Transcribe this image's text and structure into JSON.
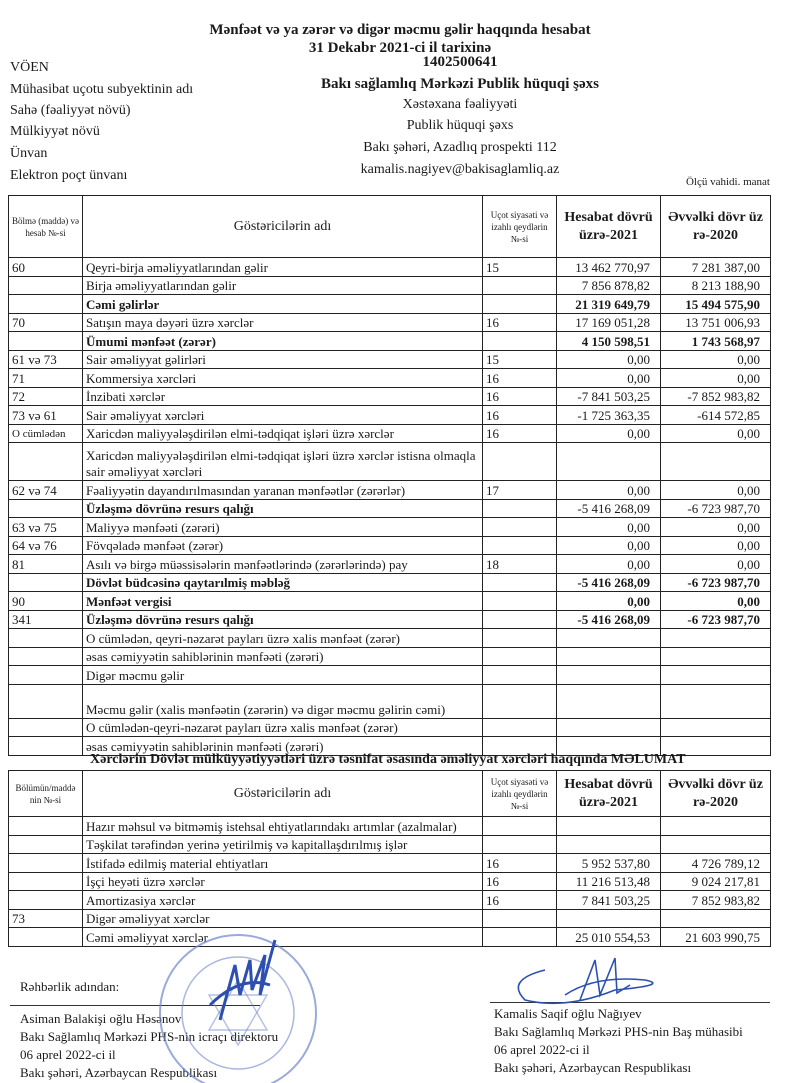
{
  "header": {
    "title": "Mənfəət və ya zərər və digər məcmu gəlir haqqında hesabat",
    "date": "31 Dekabr 2021-ci il tarixinə",
    "fields": [
      {
        "label": "VÖEN",
        "value": "1402500641"
      },
      {
        "label": "Mühasibat uçotu subyektinin adı",
        "value": "Bakı sağlamlıq Mərkəzi Publik hüquqi şəxs"
      },
      {
        "label": "Sahə (fəaliyyət növü)",
        "value": "Xəstəxana fəaliyyəti"
      },
      {
        "label": "Mülkiyyət növü",
        "value": "Publik hüquqi şəxs"
      },
      {
        "label": "Ünvan",
        "value": "Bakı şəhəri, Azadlıq prospekti 112"
      },
      {
        "label": "Elektron poçt ünvanı",
        "value": "kamalis.nagiyev@bakisaglamliq.az"
      }
    ],
    "unit": "Ölçü vahidi. manat"
  },
  "table1": {
    "columns": [
      "Bölmə (maddə) və hesab №-si",
      "Göstəricilərin adı",
      "Uçot siyasəti və izahlı qeydlərin №-si",
      "Hesabat dövrü üzrə-2021",
      "Əvvəlki dövr üz rə-2020"
    ],
    "rows": [
      {
        "code": "60",
        "name": "Qeyri-birja əməliyyatlarından gəlir",
        "note": "15",
        "y2021": "13 462 770,97",
        "y2020": "7 281 387,00"
      },
      {
        "code": "",
        "name": "Birja əməliyyatlarından gəlir",
        "note": "",
        "y2021": "7 856 878,82",
        "y2020": "8 213 188,90"
      },
      {
        "code": "",
        "name": "Cəmi gəlirlər",
        "note": "",
        "y2021": "21 319 649,79",
        "y2020": "15 494 575,90",
        "bold": true
      },
      {
        "code": "70",
        "name": "Satışın maya dəyəri üzrə xərclər",
        "note": "16",
        "y2021": "17 169 051,28",
        "y2020": "13 751 006,93"
      },
      {
        "code": "",
        "name": "Ümumi mənfəət (zərər)",
        "note": "",
        "y2021": "4 150 598,51",
        "y2020": "1 743 568,97",
        "bold": true
      },
      {
        "code": "61 və 73",
        "name": "Sair əməliyyat gəlirləri",
        "note": "15",
        "y2021": "0,00",
        "y2020": "0,00"
      },
      {
        "code": "71",
        "name": "Kommersiya xərcləri",
        "note": "16",
        "y2021": "0,00",
        "y2020": "0,00"
      },
      {
        "code": "72",
        "name": "İnzibati xərclər",
        "note": "16",
        "y2021": "-7 841 503,25",
        "y2020": "-7 852 983,82"
      },
      {
        "code": "73 və 61",
        "name": "Sair əməliyyat xərcləri",
        "note": "16",
        "y2021": "-1 725 363,35",
        "y2020": "-614 572,85"
      },
      {
        "code": "O cümlədən",
        "name": "Xaricdən maliyyələşdirilən elmi-tədqiqat işləri üzrə xərclər",
        "note": "16",
        "y2021": "0,00",
        "y2020": "0,00"
      },
      {
        "code": "",
        "name": "Xaricdən maliyyələşdirilən elmi-tədqiqat işləri üzrə xərclər istisna olmaqla sair əməliyyat xərcləri",
        "note": "",
        "y2021": "",
        "y2020": "",
        "tall": true
      },
      {
        "code": "62 və 74",
        "name": "Fəaliyyətin dayandırılmasından yaranan mənfəətlər (zərərlər)",
        "note": "17",
        "y2021": "0,00",
        "y2020": "0,00"
      },
      {
        "code": "",
        "name": "Üzləşmə dövrünə resurs qalığı",
        "note": "",
        "y2021": "-5 416 268,09",
        "y2020": "-6 723 987,70",
        "boldName": true
      },
      {
        "code": "63 və 75",
        "name": "Maliyyə mənfəəti (zərəri)",
        "note": "",
        "y2021": "0,00",
        "y2020": "0,00"
      },
      {
        "code": "64 və 76",
        "name": "Fövqəladə mənfəət (zərər)",
        "note": "",
        "y2021": "0,00",
        "y2020": "0,00"
      },
      {
        "code": "81",
        "name": "Asılı və birgə müəssisələrin mənfəətlərində (zərərlərində) pay",
        "note": "18",
        "y2021": "0,00",
        "y2020": "0,00"
      },
      {
        "code": "",
        "name": "Dövlət büdcəsinə qaytarılmiş məbləğ",
        "note": "",
        "y2021": "-5 416 268,09",
        "y2020": "-6 723 987,70",
        "bold": true
      },
      {
        "code": "90",
        "name": "Mənfəət vergisi",
        "note": "",
        "y2021": "0,00",
        "y2020": "0,00",
        "bold": true
      },
      {
        "code": "341",
        "name": "Üzləşmə dövrünə resurs qalığı",
        "note": "",
        "y2021": "-5 416 268,09",
        "y2020": "-6 723 987,70",
        "bold": true
      },
      {
        "code": "",
        "name": "O cümlədən, qeyri-nəzarət payları üzrə xalis mənfəət (zərər)",
        "note": "",
        "y2021": "",
        "y2020": ""
      },
      {
        "code": "",
        "name": "əsas cəmiyyətin sahiblərinin mənfəəti (zərəri)",
        "note": "",
        "y2021": "",
        "y2020": ""
      },
      {
        "code": "",
        "name": "Digər məcmu gəlir",
        "note": "",
        "y2021": "",
        "y2020": ""
      },
      {
        "code": "",
        "name": "Məcmu gəlir (xalis mənfəətin (zərərin) və digər məcmu gəlirin cəmi)",
        "note": "",
        "y2021": "",
        "y2020": "",
        "tall": true
      },
      {
        "code": "",
        "name": "O cümlədən-qeyri-nəzarət payları üzrə xalis mənfəət (zərər)",
        "note": "",
        "y2021": "",
        "y2020": ""
      },
      {
        "code": "",
        "name": "əsas cəmiyyətin sahiblərinin mənfəəti (zərəri)",
        "note": "",
        "y2021": "",
        "y2020": ""
      }
    ]
  },
  "table2": {
    "title": "Xərclərin Dövlət mülküyyətiyyətləri üzrə təsnifat əsasında əməliyyat xərcləri haqqında MƏLUMAT",
    "columns": [
      "Bölümün/maddə nin №-si",
      "Göstəricilərin adı",
      "Uçot siyasəti və izahlı qeydlərin №-si",
      "Hesabat dövrü üzrə-2021",
      "Əvvəlki dövr üz rə-2020"
    ],
    "rows": [
      {
        "code": "",
        "name": "Hazır məhsul və bitməmiş istehsal ehtiyatlarındakı artımlar (azalmalar)",
        "note": "",
        "y2021": "",
        "y2020": ""
      },
      {
        "code": "",
        "name": "Təşkilat tərəfindən yerinə yetirilmiş və kapitallaşdırılmış işlər",
        "note": "",
        "y2021": "",
        "y2020": ""
      },
      {
        "code": "",
        "name": "İstifadə edilmiş material ehtiyatları",
        "note": "16",
        "y2021": "5 952 537,80",
        "y2020": "4 726 789,12"
      },
      {
        "code": "",
        "name": "İşçi heyəti üzrə xərclər",
        "note": "16",
        "y2021": "11 216 513,48",
        "y2020": "9 024 217,81"
      },
      {
        "code": "",
        "name": "Amortizasiya xərclər",
        "note": "16",
        "y2021": "7 841 503,25",
        "y2020": "7 852 983,82"
      },
      {
        "code": "73",
        "name": "Digər əməliyyat xərclər",
        "note": "",
        "y2021": "",
        "y2020": ""
      },
      {
        "code": "",
        "name": "Cəmi əməliyyat xərclər",
        "note": "",
        "y2021": "25 010 554,53",
        "y2020": "21 603 990,75"
      }
    ]
  },
  "footer": {
    "management": "Rəhbərlik adından:",
    "left": [
      "Asiman Balakişi oğlu Həsənov",
      "Bakı Sağlamlıq Mərkəzi PHS-nin icraçı direktoru",
      "06 aprel 2022-ci il",
      "Bakı şəhəri, Azərbaycan Respublikası"
    ],
    "right": [
      "Kamalis Saqif oğlu Nağıyev",
      "Bakı Sağlamlıq Mərkəzi PHS-nin Baş mühasibi",
      "06 aprel 2022-ci il",
      "Bakı şəhəri, Azərbaycan Respublikası"
    ],
    "stamp_text": "AZƏRBAYCAN RESPUBLİKASI BAKI SAĞLAMLIQ MƏRKƏZİ PUBLİK HÜQUQİ ŞƏXS",
    "ink_color": "#2d4fb0"
  }
}
